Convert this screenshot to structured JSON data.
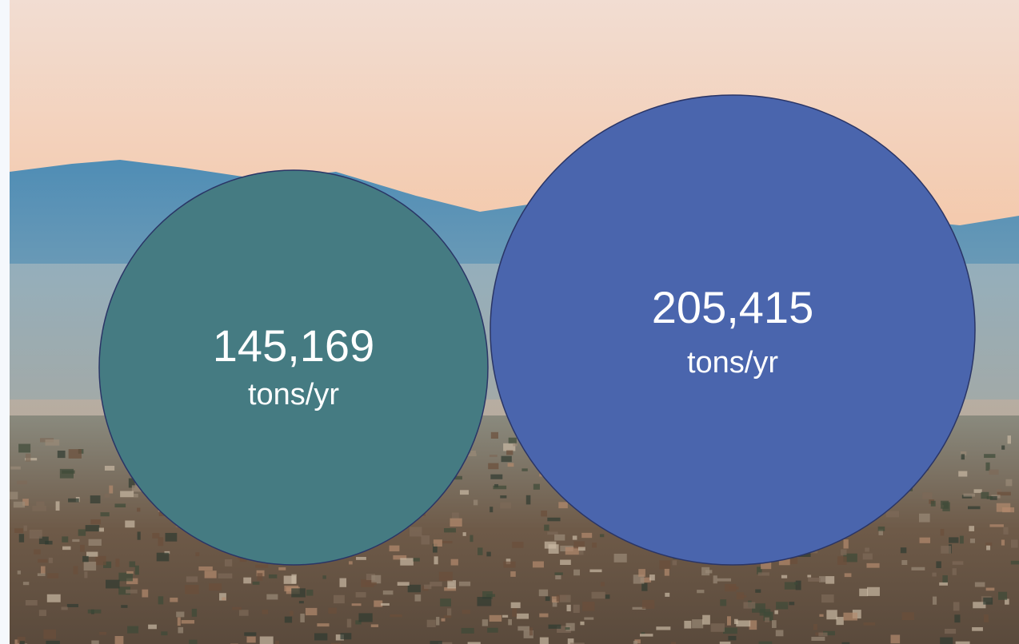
{
  "circles": [
    {
      "value": "145,169",
      "unit": "tons/yr"
    },
    {
      "value": "205,415",
      "unit": "tons/yr"
    }
  ]
}
